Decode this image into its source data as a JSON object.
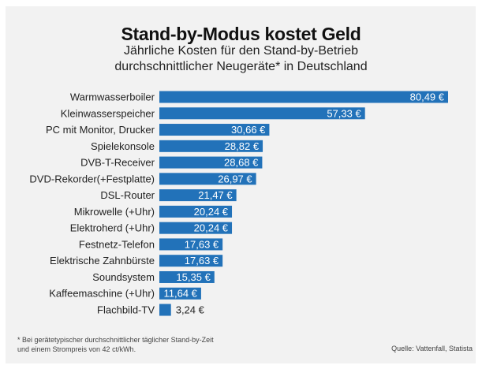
{
  "chart_data": {
    "type": "bar",
    "orientation": "horizontal",
    "title": "Stand-by-Modus kostet Geld",
    "subtitle_lines": [
      "Jährliche Kosten für den Stand-by-Betrieb",
      "durchschnittlicher Neugeräte* in Deutschland"
    ],
    "categories": [
      "Warmwasserboiler",
      "Kleinwasserspeicher",
      "PC mit Monitor, Drucker",
      "Spielekonsole",
      "DVB-T-Receiver",
      "DVD-Rekorder(+Festplatte)",
      "DSL-Router",
      "Mikrowelle (+Uhr)",
      "Elektroherd (+Uhr)",
      "Festnetz-Telefon",
      "Elektrische Zahnbürste",
      "Soundsystem",
      "Kaffeemaschine (+Uhr)",
      "Flachbild-TV"
    ],
    "values": [
      80.49,
      57.33,
      30.66,
      28.82,
      28.68,
      26.97,
      21.47,
      20.24,
      20.24,
      17.63,
      17.63,
      15.35,
      11.64,
      3.24
    ],
    "value_labels": [
      "80,49 €",
      "57,33 €",
      "30,66 €",
      "28,82 €",
      "28,68 €",
      "26,97 €",
      "21,47 €",
      "20,24 €",
      "20,24 €",
      "17,63 €",
      "17,63 €",
      "15,35 €",
      "11,64 €",
      "3,24 €"
    ],
    "unit": "€",
    "xlim": [
      0,
      81
    ],
    "grid": false,
    "bar_color": "#2272b9",
    "footnote_lines": [
      "* Bei gerätetypischer durchschnittlicher täglicher Stand-by-Zeit",
      "und einem Strompreis von 42 ct/kWh."
    ],
    "source": "Quelle: Vattenfall, Statista"
  }
}
